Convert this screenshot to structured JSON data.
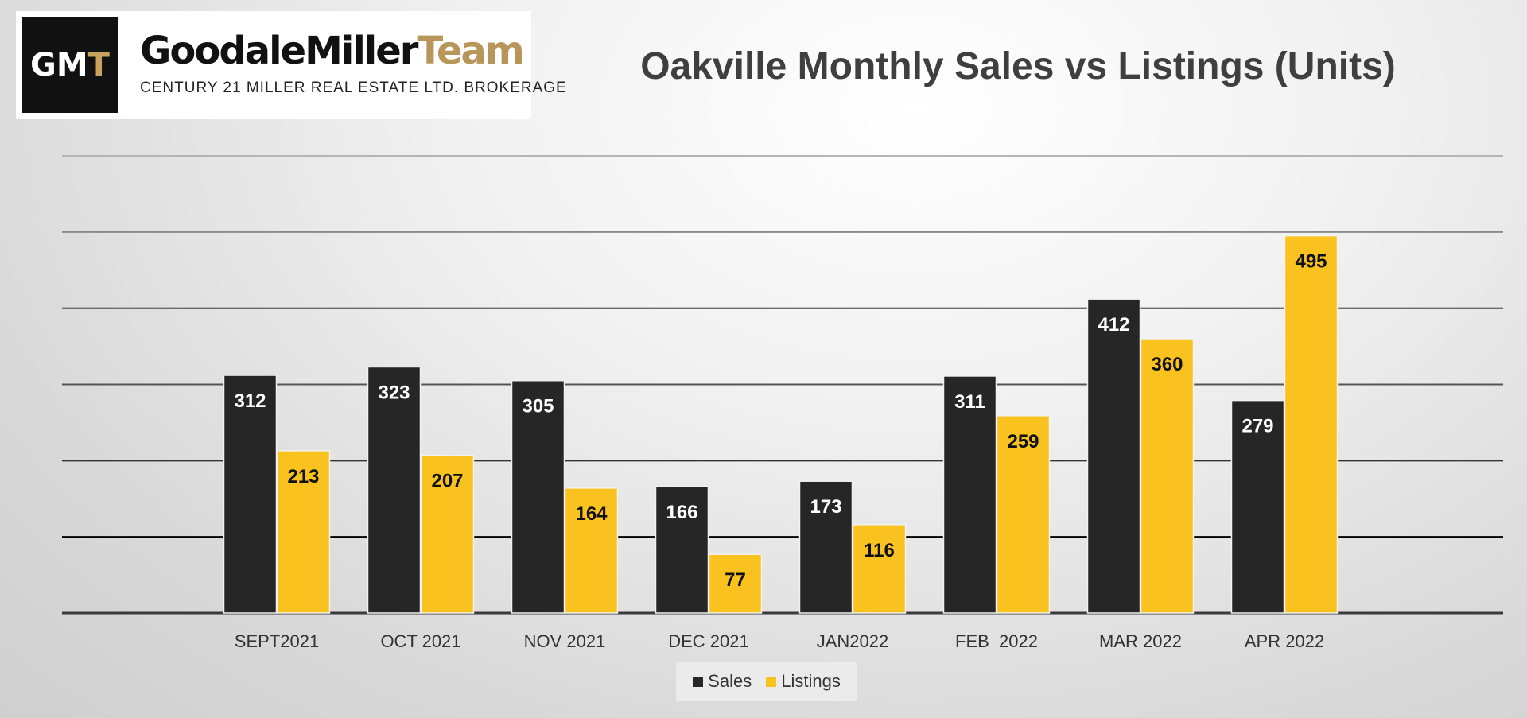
{
  "logo": {
    "mark_prefix": "GM",
    "mark_suffix": "T",
    "name_main": "GoodaleMiller",
    "name_accent": "Team",
    "subtitle": "CENTURY 21 MILLER REAL ESTATE LTD. BROKERAGE"
  },
  "chart_data": {
    "type": "bar",
    "title": "Oakville Monthly Sales vs Listings (Units)",
    "categories": [
      "SEPT2021",
      "OCT 2021",
      "NOV 2021",
      "DEC 2021",
      "JAN2022",
      "FEB  2022",
      "MAR 2022",
      "APR 2022"
    ],
    "series": [
      {
        "name": "Sales",
        "color": "#262626",
        "label_color": "#ffffff",
        "values": [
          312,
          323,
          305,
          166,
          173,
          311,
          412,
          279
        ]
      },
      {
        "name": "Listings",
        "color": "#f9c21e",
        "label_color": "#111111",
        "values": [
          213,
          207,
          164,
          77,
          116,
          259,
          360,
          495
        ]
      }
    ],
    "ylim": [
      0,
      600
    ],
    "gridlines": true,
    "xlabel": "",
    "ylabel": "",
    "legend_position": "bottom"
  }
}
